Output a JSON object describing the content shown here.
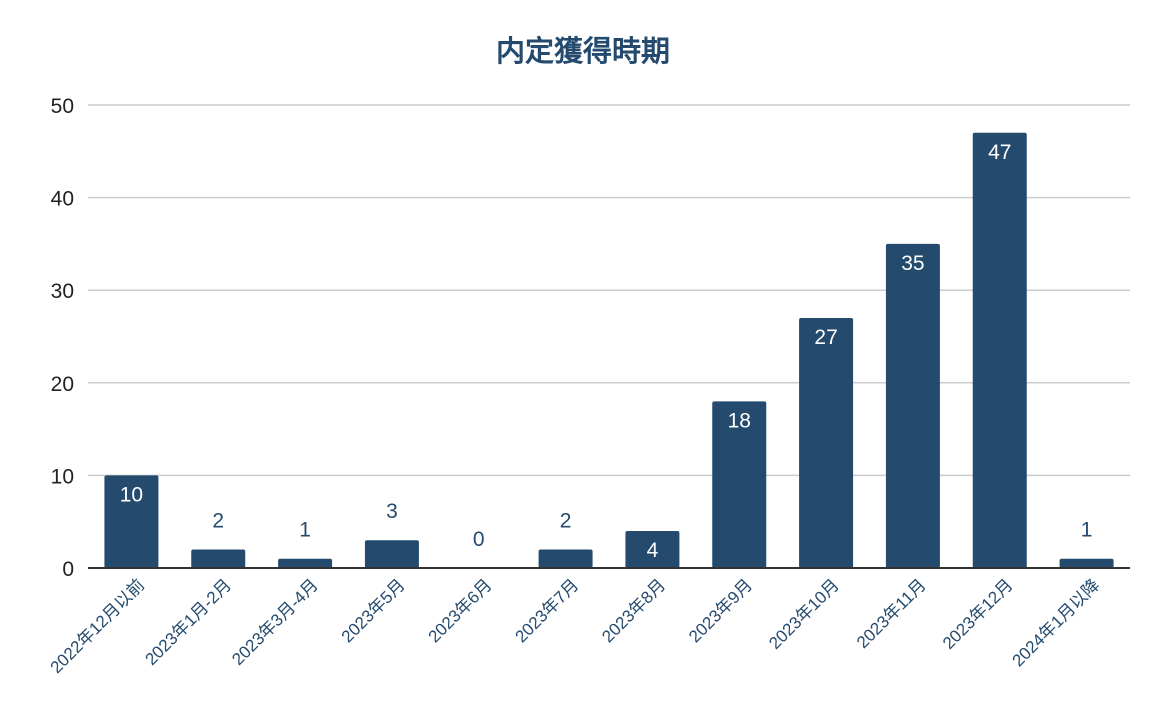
{
  "chart_data": {
    "type": "bar",
    "title": "内定獲得時期",
    "xlabel": "",
    "ylabel": "",
    "categories": [
      "2022年12月以前",
      "2023年1月-2月",
      "2023年3月-4月",
      "2023年5月",
      "2023年6月",
      "2023年7月",
      "2023年8月",
      "2023年9月",
      "2023年10月",
      "2023年11月",
      "2023年12月",
      "2024年1月以降"
    ],
    "values": [
      10,
      2,
      1,
      3,
      0,
      2,
      4,
      18,
      27,
      35,
      47,
      1
    ],
    "ylim": [
      0,
      50
    ],
    "yticks": [
      0,
      10,
      20,
      30,
      40,
      50
    ],
    "grid": true,
    "legend": "none",
    "colors": {
      "bar": "#244a6e",
      "title": "#244a6e",
      "grid": "#cccccc",
      "axis": "#333333",
      "label_inside": "#ffffff",
      "label_outside": "#244a6e"
    }
  }
}
